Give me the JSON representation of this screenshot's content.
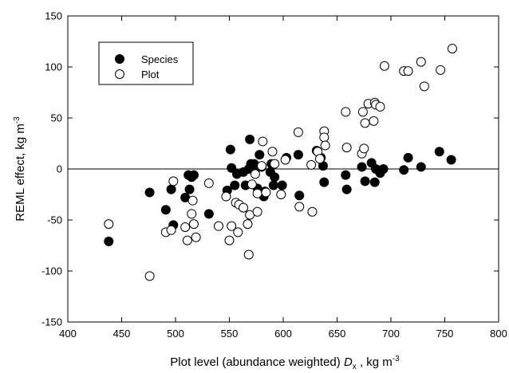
{
  "chart_data": {
    "type": "scatter",
    "xlabel_main": "Plot level (abundance weighted) ",
    "xlabel_symbol": "D",
    "xlabel_sub": "x",
    "xlabel_unit": " , kg m",
    "xlabel_exp": "-3",
    "ylabel_main": "REML effect, kg m",
    "ylabel_exp": "-3",
    "xlim": [
      400,
      800
    ],
    "ylim": [
      -150,
      150
    ],
    "x_ticks": [
      "400",
      "450",
      "500",
      "550",
      "600",
      "650",
      "700",
      "750",
      "800"
    ],
    "y_ticks": [
      "-150",
      "-100",
      "-50",
      "0",
      "50",
      "100",
      "150"
    ],
    "zero_line": 0,
    "legend_position": "top-left",
    "series": [
      {
        "name": "Species",
        "marker": "filled-circle",
        "color": "#000000",
        "points": [
          [
            438,
            -71
          ],
          [
            476,
            -23
          ],
          [
            491,
            -40
          ],
          [
            496,
            -20
          ],
          [
            498,
            -55
          ],
          [
            509,
            -28
          ],
          [
            512,
            -6
          ],
          [
            513,
            -20
          ],
          [
            515,
            -8
          ],
          [
            517,
            -6
          ],
          [
            531,
            -44
          ],
          [
            548,
            -21
          ],
          [
            551,
            19
          ],
          [
            552,
            1
          ],
          [
            555,
            -16
          ],
          [
            557,
            -5
          ],
          [
            563,
            -3
          ],
          [
            565,
            -16
          ],
          [
            568,
            0
          ],
          [
            569,
            29
          ],
          [
            570,
            5
          ],
          [
            573,
            5
          ],
          [
            574,
            -1
          ],
          [
            576,
            -19
          ],
          [
            577,
            -23
          ],
          [
            578,
            14
          ],
          [
            580,
            2
          ],
          [
            582,
            -27
          ],
          [
            583,
            -22
          ],
          [
            588,
            -3
          ],
          [
            589,
            5
          ],
          [
            591,
            -16
          ],
          [
            592,
            -8
          ],
          [
            599,
            -16
          ],
          [
            603,
            11
          ],
          [
            614,
            14
          ],
          [
            615,
            -26
          ],
          [
            631,
            18
          ],
          [
            635,
            11
          ],
          [
            637,
            3
          ],
          [
            638,
            -13
          ],
          [
            658,
            -6
          ],
          [
            659,
            -20
          ],
          [
            673,
            2
          ],
          [
            676,
            -12
          ],
          [
            682,
            6
          ],
          [
            685,
            -13
          ],
          [
            686,
            0
          ],
          [
            690,
            -4
          ],
          [
            693,
            0
          ],
          [
            712,
            -1
          ],
          [
            716,
            11
          ],
          [
            728,
            2
          ],
          [
            745,
            17
          ],
          [
            756,
            9
          ]
        ]
      },
      {
        "name": "Plot",
        "marker": "open-circle",
        "color": "#ffffff",
        "points": [
          [
            438,
            -54
          ],
          [
            476,
            -105
          ],
          [
            491,
            -62
          ],
          [
            496,
            -60
          ],
          [
            498,
            -12
          ],
          [
            509,
            -57
          ],
          [
            511,
            -70
          ],
          [
            515,
            -44
          ],
          [
            516,
            -31
          ],
          [
            517,
            -54
          ],
          [
            519,
            -67
          ],
          [
            531,
            -14
          ],
          [
            540,
            -56
          ],
          [
            547,
            -27
          ],
          [
            550,
            -70
          ],
          [
            552,
            -56
          ],
          [
            556,
            -33
          ],
          [
            558,
            -62
          ],
          [
            559,
            -35
          ],
          [
            563,
            -38
          ],
          [
            567,
            -54
          ],
          [
            568,
            -84
          ],
          [
            569,
            -45
          ],
          [
            571,
            -15
          ],
          [
            574,
            -5
          ],
          [
            576,
            -24
          ],
          [
            576,
            -42
          ],
          [
            580,
            3
          ],
          [
            581,
            27
          ],
          [
            584,
            -23
          ],
          [
            590,
            17
          ],
          [
            592,
            5
          ],
          [
            598,
            -25
          ],
          [
            602,
            9
          ],
          [
            614,
            36
          ],
          [
            615,
            -37
          ],
          [
            626,
            4
          ],
          [
            627,
            -42
          ],
          [
            632,
            17
          ],
          [
            634,
            10
          ],
          [
            638,
            37
          ],
          [
            638,
            31
          ],
          [
            639,
            23
          ],
          [
            658,
            56
          ],
          [
            659,
            21
          ],
          [
            673,
            15
          ],
          [
            674,
            56
          ],
          [
            675,
            20
          ],
          [
            676,
            45
          ],
          [
            679,
            64
          ],
          [
            684,
            47
          ],
          [
            685,
            65
          ],
          [
            686,
            63
          ],
          [
            690,
            61
          ],
          [
            694,
            101
          ],
          [
            712,
            96
          ],
          [
            716,
            96
          ],
          [
            728,
            105
          ],
          [
            731,
            81
          ],
          [
            746,
            97
          ],
          [
            757,
            118
          ]
        ]
      }
    ]
  }
}
